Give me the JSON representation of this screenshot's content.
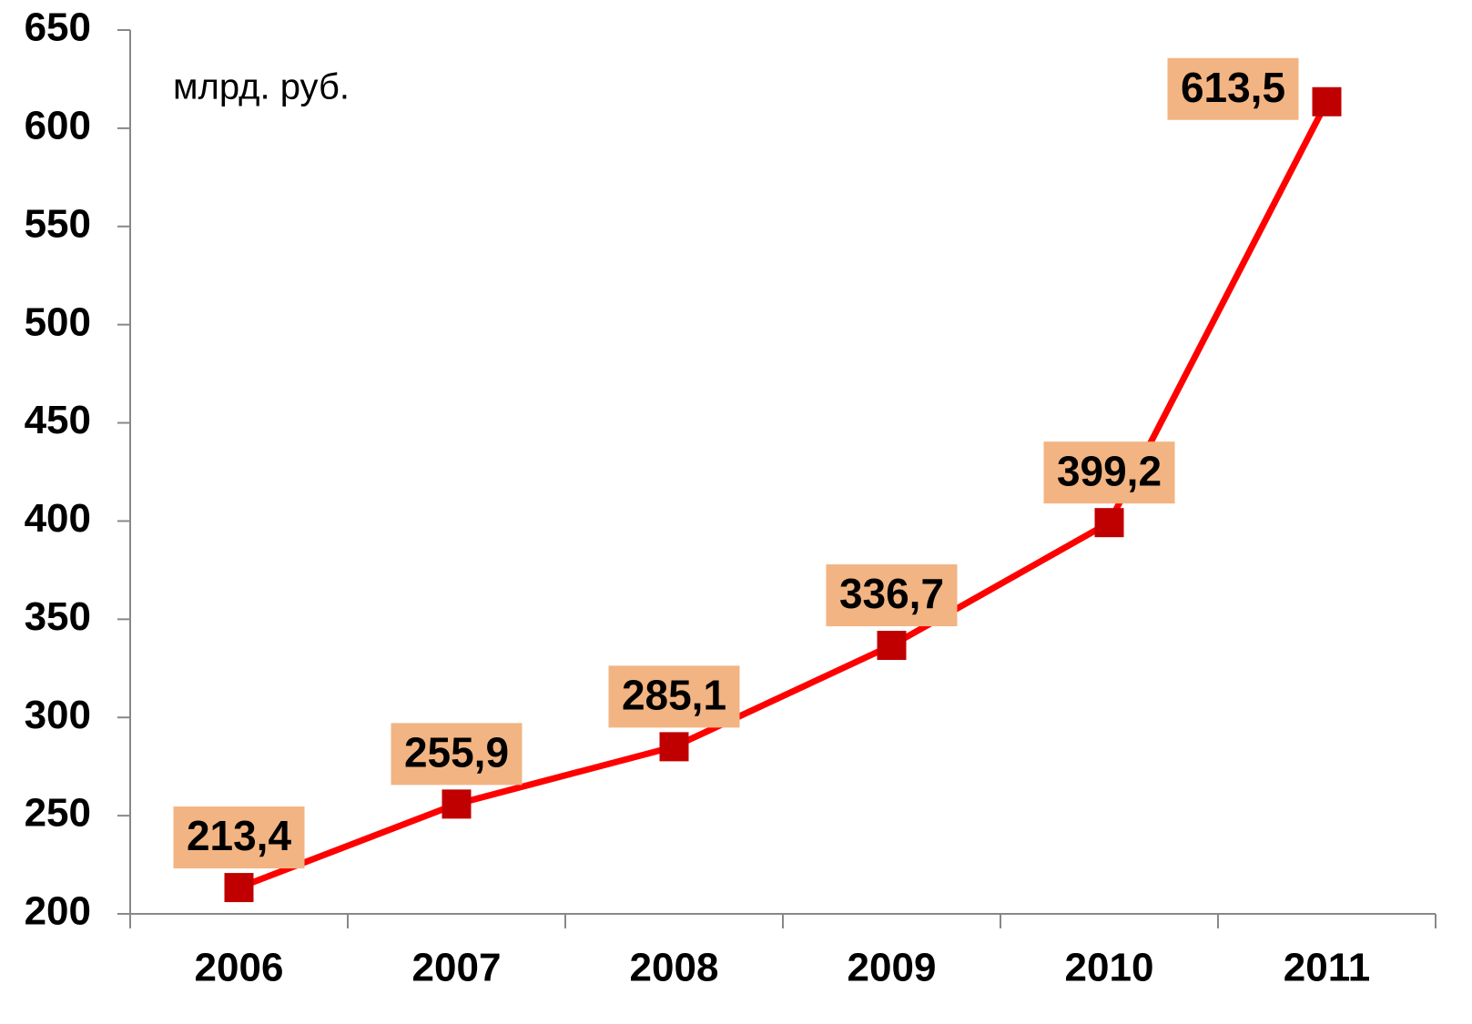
{
  "chart_data": {
    "type": "line",
    "annotation": "млрд. руб.",
    "categories": [
      "2006",
      "2007",
      "2008",
      "2009",
      "2010",
      "2011"
    ],
    "series": [
      {
        "name": "млрд. руб.",
        "color": "#ff0000",
        "marker_color": "#c00000",
        "values": [
          213.4,
          255.9,
          285.1,
          336.7,
          399.2,
          613.5
        ],
        "value_labels": [
          "213,4",
          "255,9",
          "285,1",
          "336,7",
          "399,2",
          "613,5"
        ]
      }
    ],
    "label_background": "#f2b482",
    "ylim": [
      200,
      650
    ],
    "yticks": [
      200,
      250,
      300,
      350,
      400,
      450,
      500,
      550,
      600,
      650
    ],
    "grid": false
  }
}
